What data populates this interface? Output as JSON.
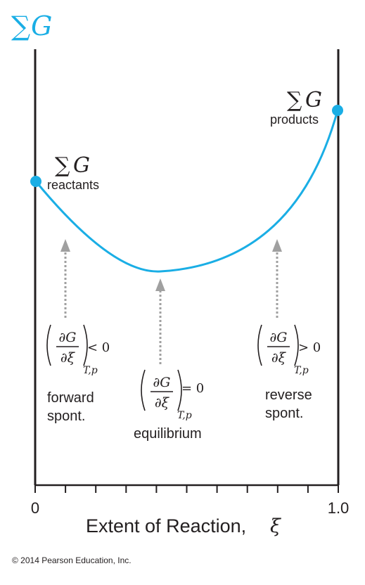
{
  "header": {
    "symbol": "∑",
    "letter": "G",
    "color": "#1aaee5"
  },
  "axis": {
    "x_min_label": "0",
    "x_max_label": "1.0",
    "title": "Extent of Reaction, ",
    "title_symbol": "ξ",
    "minor_tick_count": 10
  },
  "points": {
    "reactants": {
      "symbol": "∑",
      "letter": "G",
      "subscript": "reactants"
    },
    "products": {
      "symbol": "∑",
      "letter": "G",
      "subscript": "products"
    }
  },
  "annotations": {
    "forward": {
      "partial_num": "∂G",
      "partial_den": "∂ξ",
      "subscript": "T,p",
      "relation": "< 0",
      "label_line1": "forward",
      "label_line2": "spont."
    },
    "equilibrium": {
      "partial_num": "∂G",
      "partial_den": "∂ξ",
      "subscript": "T,p",
      "relation": "= 0",
      "label_line1": "equilibrium"
    },
    "reverse": {
      "partial_num": "∂G",
      "partial_den": "∂ξ",
      "subscript": "T,p",
      "relation": "> 0",
      "label_line1": "reverse",
      "label_line2": "spont."
    }
  },
  "colors": {
    "curve": "#1aaee5",
    "arrow": "#a0a0a0",
    "axis": "#231f20"
  },
  "footer": {
    "copyright": "© 2014 Pearson Education, Inc."
  }
}
